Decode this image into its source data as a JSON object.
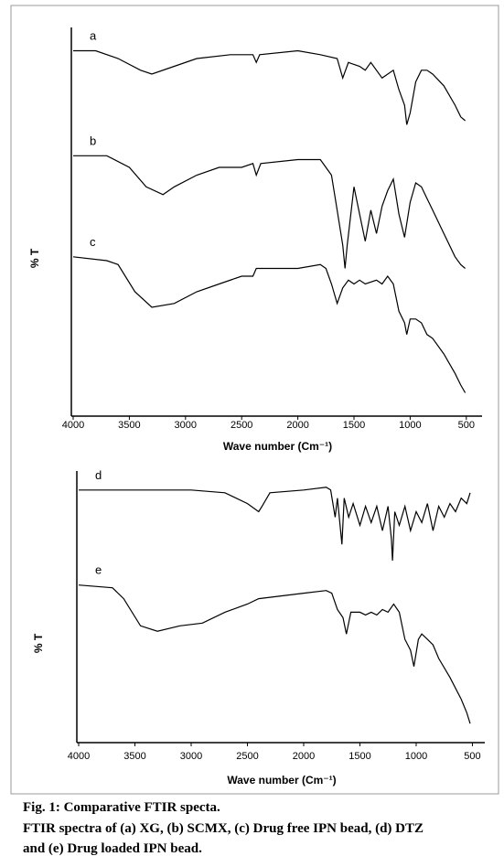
{
  "chart_data": [
    {
      "type": "line",
      "xlabel": "Wave number (Cm⁻¹)",
      "ylabel": "% T",
      "xlim": [
        4000,
        360
      ],
      "ylim": [
        0,
        100
      ],
      "xticks": [
        4000,
        3500,
        3000,
        2500,
        2000,
        1500,
        1000,
        500
      ],
      "series": [
        {
          "name": "a",
          "color": "#000000",
          "x": [
            4000,
            3800,
            3600,
            3400,
            3300,
            3100,
            2900,
            2600,
            2400,
            2370,
            2340,
            2000,
            1800,
            1650,
            1600,
            1550,
            1450,
            1400,
            1350,
            1250,
            1150,
            1100,
            1050,
            1030,
            1000,
            950,
            900,
            850,
            800,
            700,
            600,
            550,
            510
          ],
          "values": [
            94,
            94,
            92,
            89,
            88,
            90,
            92,
            93,
            93,
            91,
            93,
            94,
            93,
            92,
            87,
            91,
            90,
            89,
            91,
            87,
            89,
            84,
            80,
            75,
            78,
            86,
            89,
            89,
            88,
            85,
            80,
            77,
            76
          ]
        },
        {
          "name": "b",
          "color": "#000000",
          "x": [
            4000,
            3700,
            3500,
            3350,
            3200,
            3100,
            2900,
            2700,
            2500,
            2400,
            2370,
            2330,
            2000,
            1800,
            1700,
            1650,
            1600,
            1580,
            1560,
            1500,
            1450,
            1400,
            1350,
            1300,
            1250,
            1200,
            1150,
            1100,
            1050,
            1000,
            950,
            900,
            850,
            800,
            700,
            600,
            550,
            510
          ],
          "values": [
            67,
            67,
            64,
            59,
            57,
            59,
            62,
            64,
            64,
            65,
            62,
            65,
            66,
            66,
            62,
            53,
            44,
            38,
            44,
            59,
            52,
            45,
            53,
            47,
            54,
            58,
            61,
            52,
            46,
            55,
            60,
            59,
            56,
            53,
            47,
            41,
            39,
            38
          ]
        },
        {
          "name": "c",
          "color": "#000000",
          "x": [
            4000,
            3700,
            3600,
            3450,
            3300,
            3100,
            2900,
            2700,
            2500,
            2400,
            2370,
            2000,
            1800,
            1750,
            1700,
            1650,
            1600,
            1550,
            1500,
            1450,
            1400,
            1300,
            1250,
            1200,
            1150,
            1100,
            1050,
            1030,
            1000,
            950,
            900,
            850,
            800,
            700,
            600,
            550,
            510
          ],
          "values": [
            41,
            40,
            39,
            32,
            28,
            29,
            32,
            34,
            36,
            36,
            38,
            38,
            39,
            38,
            34,
            29,
            33,
            35,
            34,
            35,
            34,
            35,
            34,
            36,
            34,
            27,
            24,
            21,
            25,
            25,
            24,
            21,
            20,
            16,
            11,
            8,
            6
          ]
        }
      ]
    },
    {
      "type": "line",
      "xlabel": "Wave number (Cm⁻¹)",
      "ylabel": "% T",
      "xlim": [
        4000,
        390
      ],
      "ylim": [
        0,
        100
      ],
      "xticks": [
        4000,
        3500,
        3000,
        2500,
        2000,
        1500,
        1000,
        500
      ],
      "series": [
        {
          "name": "d",
          "color": "#000000",
          "x": [
            4000,
            3000,
            2700,
            2500,
            2400,
            2370,
            2300,
            2000,
            1800,
            1760,
            1720,
            1700,
            1660,
            1640,
            1600,
            1560,
            1500,
            1450,
            1400,
            1350,
            1300,
            1250,
            1220,
            1210,
            1190,
            1150,
            1100,
            1050,
            1000,
            950,
            900,
            850,
            800,
            750,
            700,
            650,
            600,
            550,
            520
          ],
          "values": [
            93,
            93,
            92,
            88,
            85,
            87,
            92,
            93,
            94,
            93,
            83,
            90,
            73,
            90,
            83,
            88,
            80,
            87,
            81,
            87,
            78,
            87,
            75,
            67,
            85,
            80,
            87,
            78,
            85,
            81,
            88,
            78,
            87,
            83,
            88,
            85,
            90,
            88,
            92
          ]
        },
        {
          "name": "e",
          "color": "#000000",
          "x": [
            4000,
            3700,
            3600,
            3450,
            3300,
            3100,
            2900,
            2700,
            2500,
            2400,
            2000,
            1800,
            1750,
            1700,
            1650,
            1620,
            1580,
            1500,
            1450,
            1400,
            1350,
            1300,
            1250,
            1200,
            1150,
            1100,
            1050,
            1020,
            980,
            950,
            900,
            850,
            800,
            700,
            600,
            550,
            520
          ],
          "values": [
            58,
            57,
            53,
            43,
            41,
            43,
            44,
            48,
            51,
            53,
            55,
            56,
            55,
            49,
            46,
            40,
            48,
            48,
            47,
            48,
            47,
            49,
            48,
            51,
            48,
            38,
            34,
            28,
            38,
            40,
            38,
            36,
            31,
            24,
            16,
            11,
            7
          ]
        }
      ]
    }
  ],
  "caption": {
    "title": "Fig. 1: Comparative FTIR specta.",
    "lines": [
      "FTIR spectra of (a) XG, (b) SCMX, (c) Drug free IPN bead, (d) DTZ",
      "and (e) Drug loaded IPN bead."
    ]
  }
}
